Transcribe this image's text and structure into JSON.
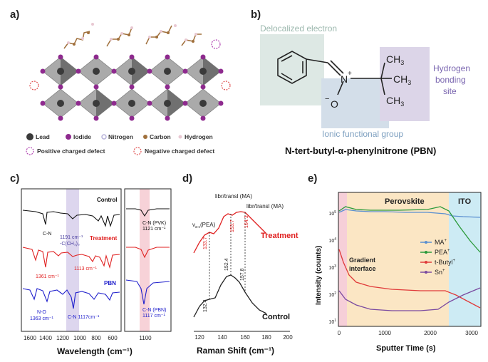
{
  "panel_a": {
    "label": "a)",
    "legend": {
      "lead": "Lead",
      "iodide": "Iodide",
      "nitrogen": "Nitrogen",
      "carbon": "Carbon",
      "hydrogen": "Hydrogen",
      "pos_defect": "Positive charged defect",
      "neg_defect": "Negative charged defect"
    },
    "colors": {
      "lead": "#3a3a3a",
      "iodide": "#8e2a8e",
      "nitrogen": "#b7b2d9",
      "carbon": "#a0703c",
      "hydrogen": "#e8c8d2",
      "pos": "#b03fb0",
      "neg": "#e05050"
    }
  },
  "panel_b": {
    "label": "b)",
    "delocalized": "Delocalized electron",
    "ionic": "Ionic functional group",
    "hbond_1": "Hydrogen",
    "hbond_2": "bonding",
    "hbond_3": "site",
    "n_plus": "N",
    "plus": "+",
    "o_minus": "O",
    "minus": "−",
    "ch3": "CH",
    "sub3": "3",
    "caption": "N-tert-butyl-α-phenylnitrone (PBN)",
    "colors": {
      "deloc": "#dde8e4",
      "ionic": "#d3dee9",
      "hbond": "#dcd5e8",
      "hbond_text": "#7a66b0",
      "ionic_text": "#7ea0c0",
      "deloc_text": "#9cb8ae"
    }
  },
  "panel_c": {
    "label": "c)",
    "xlabel": "Wavelength (cm⁻¹)",
    "ticks_left": [
      "1600",
      "1400",
      "1200",
      "1000",
      "800",
      "600"
    ],
    "ticks_right": [
      "1100"
    ],
    "series": [
      {
        "name": "Control",
        "color": "#111111"
      },
      {
        "name": "Treatment",
        "color": "#e02020"
      },
      {
        "name": "PBN",
        "color": "#2020cc"
      }
    ],
    "annotations": {
      "cn": "C-N",
      "cch3_1": "1191 cm⁻¹",
      "cch3_2": "-C(CH₃)₃",
      "t1361": "1361 cm⁻¹",
      "t1113": "1113 cm⁻¹",
      "no_1": "N-O",
      "no_2": "1363 cm⁻¹",
      "cn1117": "C-N 1117cm⁻¹",
      "pvk_1": "C-N (PVK)",
      "pvk_2": "1121 cm⁻¹",
      "pbn_1": "C-N (PBN)",
      "pbn_2": "1117 cm⁻¹"
    }
  },
  "panel_d": {
    "label": "d)",
    "xlabel": "Raman Shift (cm⁻¹)",
    "ticks": [
      "120",
      "140",
      "160",
      "180",
      "200"
    ],
    "peaks_top": {
      "pea": "ν",
      "pea_sub": "a-c",
      "pea_txt": "(PEA)",
      "ma1": "libr/transl (MA)",
      "ma2": "libr/transl (MA)"
    },
    "treat_vals": [
      "133.7",
      "153.7",
      "164.3"
    ],
    "control_vals": [
      "132.4",
      "152.4",
      "157.8"
    ],
    "series": [
      {
        "name": "Treatment",
        "color": "#e02020"
      },
      {
        "name": "Control",
        "color": "#111111"
      }
    ]
  },
  "panel_e": {
    "label": "e)",
    "xlabel": "Sputter Time (s)",
    "ylabel": "Intensity (counts)",
    "ticks_x": [
      "0",
      "1000",
      "2000",
      "3000"
    ],
    "ticks_y": [
      {
        "b": "10",
        "e": "1"
      },
      {
        "b": "10",
        "e": "2"
      },
      {
        "b": "10",
        "e": "3"
      },
      {
        "b": "10",
        "e": "4"
      },
      {
        "b": "10",
        "e": "5"
      }
    ],
    "regions": {
      "perovskite": "Perovskite",
      "ito": "ITO",
      "gradient_1": "Gradient",
      "gradient_2": "interface"
    },
    "legend": [
      {
        "name": "MA",
        "sup": "+",
        "color": "#5a8fd0"
      },
      {
        "name": "PEA",
        "sup": "+",
        "color": "#2a9a3a"
      },
      {
        "name": "t-Butyl",
        "sup": "+",
        "color": "#e03a3a"
      },
      {
        "name": "Sn",
        "sup": "+",
        "color": "#7a4aa0"
      }
    ],
    "colors": {
      "pink": "#f6cfd8",
      "peach": "#fbe6c4",
      "blue": "#cdebf4"
    }
  }
}
